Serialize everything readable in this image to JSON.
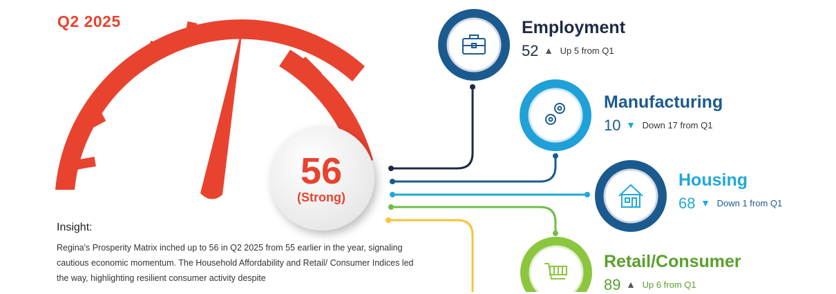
{
  "header": {
    "quarter": "Q2 2025"
  },
  "gauge": {
    "value": "56",
    "label": "(Strong)",
    "needle_value": 56,
    "colors": {
      "arc": "#e8432f",
      "needle": "#e8432f"
    }
  },
  "insight": {
    "title": "Insight:",
    "text": "Regina's Prosperity Matrix inched up to 56 in Q2 2025 from 55 earlier in the year, signaling cautious economic momentum. The Household Affordability and Retail/ Consumer Indices led the way, highlighting resilient consumer activity despite"
  },
  "indicators": [
    {
      "name": "Employment",
      "value": "52",
      "direction": "up",
      "change": "Up 5 from Q1",
      "icon": "briefcase-icon",
      "color": "#1b5a8f"
    },
    {
      "name": "Manufacturing",
      "value": "10",
      "direction": "down",
      "change": "Down 17 from Q1",
      "icon": "gears-icon",
      "color": "#1fa0d8"
    },
    {
      "name": "Housing",
      "value": "68",
      "direction": "down",
      "change": "Down 1 from Q1",
      "icon": "house-icon",
      "color": "#1b5a8f"
    },
    {
      "name": "Retail/Consumer",
      "value": "89",
      "direction": "up",
      "change": "Up 6 from Q1",
      "icon": "cart-icon",
      "color": "#8cc63f"
    }
  ],
  "colors": {
    "line_dark": "#1e2a44",
    "line_blue": "#1b5a8f",
    "line_cyan": "#1fa8d8",
    "line_green": "#6cbf45",
    "line_yellow": "#f4c53a"
  }
}
